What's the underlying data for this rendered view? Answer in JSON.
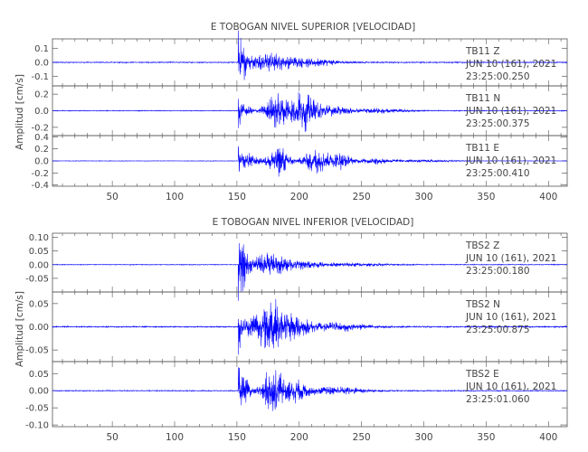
{
  "chart_data": [
    {
      "type": "line",
      "title": "E TOBOGAN NIVEL SUPERIOR [VELOCIDAD]",
      "ylabel": "Amplitud [cm/s]",
      "xlim": [
        2,
        415
      ],
      "x_ticks": [
        "50",
        "100",
        "150",
        "200",
        "250",
        "300",
        "350",
        "400"
      ],
      "line_color": "#0000ff",
      "panels": [
        {
          "station": "TB11",
          "component": "Z",
          "date": "JUN 10 (161), 2021",
          "time": "23:25:00.250",
          "ylim": [
            -0.17,
            0.17
          ],
          "y_ticks": [
            "0.1",
            "0.0",
            "-0.1"
          ],
          "envelope": {
            "noise": 0.004,
            "onset": 151,
            "peak": 0.16,
            "bursts": [
              [
                153,
                0.13,
                8
              ],
              [
                175,
                0.06,
                15
              ],
              [
                205,
                0.035,
                25
              ]
            ]
          }
        },
        {
          "station": "TB11",
          "component": "N",
          "date": "JUN 10 (161), 2021",
          "time": "23:25:00.375",
          "ylim": [
            -0.3,
            0.3
          ],
          "y_ticks": [
            "0.2",
            "0.0",
            "-0.2"
          ],
          "envelope": {
            "noise": 0.005,
            "onset": 151,
            "peak": 0.25,
            "bursts": [
              [
                157,
                0.05,
                6
              ],
              [
                182,
                0.22,
                10
              ],
              [
                203,
                0.25,
                11
              ],
              [
                225,
                0.06,
                15
              ],
              [
                265,
                0.03,
                25
              ]
            ]
          }
        },
        {
          "station": "TB11",
          "component": "E",
          "date": "JUN 10 (161), 2021",
          "time": "23:25:00.410",
          "ylim": [
            -0.42,
            0.42
          ],
          "y_ticks": [
            "0.4",
            "0.2",
            "0.0",
            "-0.2",
            "-0.4"
          ],
          "envelope": {
            "noise": 0.005,
            "onset": 151,
            "peak": 0.35,
            "bursts": [
              [
                160,
                0.12,
                7
              ],
              [
                183,
                0.28,
                9
              ],
              [
                213,
                0.22,
                10
              ],
              [
                232,
                0.15,
                10
              ],
              [
                262,
                0.06,
                14
              ],
              [
                300,
                0.02,
                25
              ]
            ]
          }
        }
      ]
    },
    {
      "type": "line",
      "title": "E TOBOGAN NIVEL INFERIOR [VELOCIDAD]",
      "ylabel": "Amplitud [cm/s]",
      "xlim": [
        2,
        415
      ],
      "x_ticks": [
        "50",
        "100",
        "150",
        "200",
        "250",
        "300",
        "350",
        "400"
      ],
      "line_color": "#0000ff",
      "panels": [
        {
          "station": "TBS2",
          "component": "Z",
          "date": "JUN 10 (161), 2021",
          "time": "23:25:00.180",
          "ylim": [
            -0.1,
            0.115
          ],
          "y_ticks": [
            "0.10",
            "0.05",
            "0.00",
            "-0.05"
          ],
          "envelope": {
            "noise": 0.0015,
            "onset": 151,
            "peak": 0.11,
            "bursts": [
              [
                153,
                0.09,
                6
              ],
              [
                175,
                0.04,
                12
              ],
              [
                195,
                0.018,
                20
              ],
              [
                240,
                0.006,
                30
              ]
            ]
          }
        },
        {
          "station": "TBS2",
          "component": "N",
          "date": "JUN 10 (161), 2021",
          "time": "23:25:00.875",
          "ylim": [
            -0.075,
            0.075
          ],
          "y_ticks": [
            "0.05",
            "0.00",
            "-0.05"
          ],
          "envelope": {
            "noise": 0.0015,
            "onset": 151,
            "peak": 0.07,
            "bursts": [
              [
                165,
                0.03,
                8
              ],
              [
                178,
                0.062,
                8
              ],
              [
                195,
                0.03,
                12
              ],
              [
                230,
                0.01,
                25
              ]
            ]
          }
        },
        {
          "station": "TBS2",
          "component": "E",
          "date": "JUN 10 (161), 2021",
          "time": "23:25:01.060",
          "ylim": [
            -0.105,
            0.085
          ],
          "y_ticks": [
            "0.05",
            "0.00",
            "-0.05",
            "-0.10"
          ],
          "envelope": {
            "noise": 0.0015,
            "onset": 151,
            "peak": 0.08,
            "bursts": [
              [
                155,
                0.035,
                6
              ],
              [
                178,
                0.072,
                8
              ],
              [
                195,
                0.035,
                12
              ],
              [
                230,
                0.012,
                25
              ]
            ]
          }
        }
      ]
    }
  ]
}
